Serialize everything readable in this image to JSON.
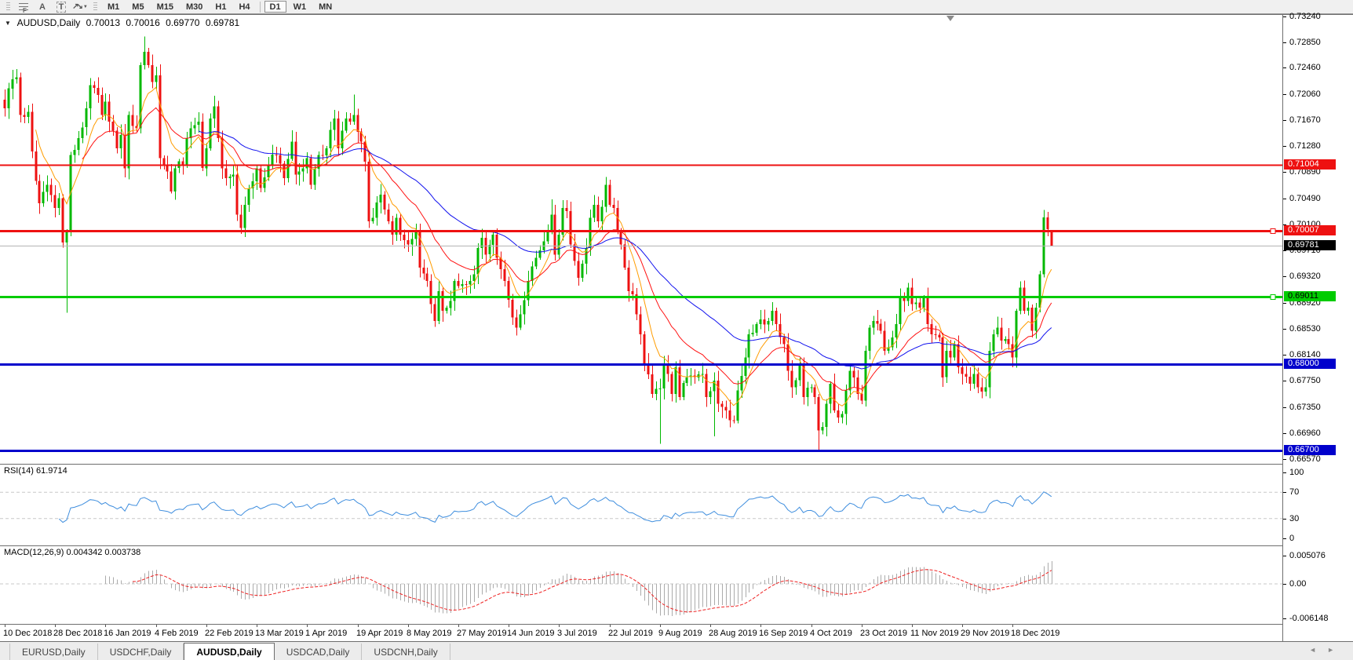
{
  "toolbar": {
    "fib_glyph": "F",
    "a_glyph": "A",
    "t_glyph": "T",
    "arrows_glyph": "↗↘",
    "caret_glyph": "▼",
    "timeframes": [
      "M1",
      "M5",
      "M15",
      "M30",
      "H1",
      "H4",
      "D1",
      "W1",
      "MN"
    ],
    "active_timeframe": "D1",
    "separator_before": "D1"
  },
  "chart_header": {
    "collapse_glyph": "▼",
    "symbol": "AUDUSD,Daily",
    "open": "0.70013",
    "high": "0.70016",
    "low": "0.69770",
    "close": "0.69781"
  },
  "rsi": {
    "label": "RSI(14) 61.9714",
    "period": 14,
    "value": 61.9714,
    "levels": [
      30,
      70
    ],
    "scale_ticks": [
      "100",
      "70",
      "30",
      "0"
    ],
    "line_color": "#3f8ede",
    "level_color": "#c9c9c9"
  },
  "macd": {
    "label": "MACD(12,26,9) 0.004342 0.003738",
    "params": [
      12,
      26,
      9
    ],
    "value": 0.004342,
    "signal_value": 0.003738,
    "scale_ticks": [
      "0.005076",
      "0.00",
      "-0.006148"
    ],
    "histogram_color": "#ababab",
    "signal_color": "#ee2222",
    "zero_line_color": "#c9c9c9"
  },
  "tabbar": {
    "tabs": [
      "EURUSD,Daily",
      "USDCHF,Daily",
      "AUDUSD,Daily",
      "USDCAD,Daily",
      "USDCNH,Daily"
    ],
    "active": "AUDUSD,Daily",
    "scroll_left_glyph": "◄",
    "scroll_right_glyph": "►"
  },
  "chart_data": {
    "type": "candlestick",
    "symbol": "AUDUSD",
    "timeframe": "Daily",
    "ylim": [
      0.66497,
      0.73246
    ],
    "price_axis_ticks": [
      "0.73240",
      "0.72850",
      "0.72460",
      "0.72060",
      "0.71670",
      "0.71280",
      "0.70890",
      "0.70490",
      "0.70100",
      "0.69710",
      "0.69320",
      "0.68920",
      "0.68530",
      "0.68140",
      "0.67750",
      "0.67350",
      "0.66960",
      "0.66570"
    ],
    "x_labels": [
      "10 Dec 2018",
      "28 Dec 2018",
      "16 Jan 2019",
      "4 Feb 2019",
      "22 Feb 2019",
      "13 Mar 2019",
      "1 Apr 2019",
      "19 Apr 2019",
      "8 May 2019",
      "27 May 2019",
      "14 Jun 2019",
      "3 Jul 2019",
      "22 Jul 2019",
      "9 Aug 2019",
      "28 Aug 2019",
      "16 Sep 2019",
      "4 Oct 2019",
      "23 Oct 2019",
      "11 Nov 2019",
      "29 Nov 2019",
      "18 Dec 2019"
    ],
    "bars_per_label": 13,
    "bar_count": 271,
    "first_open": 0.7198,
    "colors": {
      "up": "#00b800",
      "down": "#ee1111"
    },
    "close_path": [
      [
        0,
        0.7185
      ],
      [
        1,
        0.7215
      ],
      [
        3,
        0.7232
      ],
      [
        4,
        0.7175
      ],
      [
        6,
        0.718
      ],
      [
        7,
        0.712
      ],
      [
        9,
        0.7042
      ],
      [
        11,
        0.707
      ],
      [
        13,
        0.7035
      ],
      [
        14,
        0.705
      ],
      [
        15,
        0.6983
      ],
      [
        16,
        0.7
      ],
      [
        17,
        0.7115
      ],
      [
        19,
        0.714
      ],
      [
        21,
        0.7185
      ],
      [
        22,
        0.722
      ],
      [
        24,
        0.7205
      ],
      [
        25,
        0.7175
      ],
      [
        26,
        0.7195
      ],
      [
        27,
        0.7165
      ],
      [
        29,
        0.7125
      ],
      [
        30,
        0.7145
      ],
      [
        31,
        0.7095
      ],
      [
        32,
        0.7175
      ],
      [
        34,
        0.7155
      ],
      [
        35,
        0.725
      ],
      [
        36,
        0.727
      ],
      [
        37,
        0.725
      ],
      [
        38,
        0.7225
      ],
      [
        39,
        0.7235
      ],
      [
        40,
        0.711
      ],
      [
        42,
        0.709
      ],
      [
        43,
        0.706
      ],
      [
        44,
        0.7095
      ],
      [
        46,
        0.71
      ],
      [
        47,
        0.714
      ],
      [
        49,
        0.716
      ],
      [
        50,
        0.7165
      ],
      [
        51,
        0.7095
      ],
      [
        52,
        0.7125
      ],
      [
        53,
        0.717
      ],
      [
        54,
        0.7188
      ],
      [
        55,
        0.714
      ],
      [
        56,
        0.7095
      ],
      [
        57,
        0.708
      ],
      [
        59,
        0.7085
      ],
      [
        60,
        0.7025
      ],
      [
        61,
        0.7005
      ],
      [
        62,
        0.704
      ],
      [
        64,
        0.7075
      ],
      [
        65,
        0.7095
      ],
      [
        66,
        0.7065
      ],
      [
        68,
        0.71
      ],
      [
        70,
        0.7115
      ],
      [
        72,
        0.708
      ],
      [
        74,
        0.7135
      ],
      [
        75,
        0.7085
      ],
      [
        77,
        0.7095
      ],
      [
        78,
        0.711
      ],
      [
        79,
        0.707
      ],
      [
        81,
        0.7115
      ],
      [
        83,
        0.7125
      ],
      [
        85,
        0.717
      ],
      [
        86,
        0.7125
      ],
      [
        88,
        0.717
      ],
      [
        90,
        0.7175
      ],
      [
        91,
        0.715
      ],
      [
        93,
        0.7105
      ],
      [
        94,
        0.7015
      ],
      [
        95,
        0.702
      ],
      [
        97,
        0.7055
      ],
      [
        99,
        0.7015
      ],
      [
        100,
        0.6995
      ],
      [
        101,
        0.702
      ],
      [
        102,
        0.6995
      ],
      [
        104,
        0.698
      ],
      [
        106,
        0.7
      ],
      [
        107,
        0.6945
      ],
      [
        109,
        0.6925
      ],
      [
        110,
        0.689
      ],
      [
        111,
        0.6865
      ],
      [
        112,
        0.691
      ],
      [
        113,
        0.688
      ],
      [
        115,
        0.6895
      ],
      [
        116,
        0.6925
      ],
      [
        119,
        0.692
      ],
      [
        121,
        0.6935
      ],
      [
        122,
        0.6975
      ],
      [
        123,
        0.699
      ],
      [
        124,
        0.6965
      ],
      [
        126,
        0.6995
      ],
      [
        127,
        0.696
      ],
      [
        129,
        0.6925
      ],
      [
        131,
        0.687
      ],
      [
        132,
        0.6855
      ],
      [
        133,
        0.6875
      ],
      [
        135,
        0.6925
      ],
      [
        137,
        0.696
      ],
      [
        139,
        0.6985
      ],
      [
        140,
        0.7
      ],
      [
        141,
        0.7025
      ],
      [
        142,
        0.6965
      ],
      [
        143,
        0.6995
      ],
      [
        144,
        0.7035
      ],
      [
        145,
        0.703
      ],
      [
        146,
        0.698
      ],
      [
        148,
        0.693
      ],
      [
        150,
        0.6975
      ],
      [
        151,
        0.702
      ],
      [
        152,
        0.704
      ],
      [
        153,
        0.7015
      ],
      [
        155,
        0.707
      ],
      [
        156,
        0.704
      ],
      [
        157,
        0.7035
      ],
      [
        158,
        0.7
      ],
      [
        159,
        0.698
      ],
      [
        160,
        0.6945
      ],
      [
        161,
        0.691
      ],
      [
        162,
        0.6905
      ],
      [
        163,
        0.6875
      ],
      [
        164,
        0.6845
      ],
      [
        165,
        0.68
      ],
      [
        167,
        0.6755
      ],
      [
        169,
        0.6763
      ],
      [
        170,
        0.68
      ],
      [
        171,
        0.6785
      ],
      [
        172,
        0.6755
      ],
      [
        173,
        0.6795
      ],
      [
        174,
        0.675
      ],
      [
        176,
        0.678
      ],
      [
        178,
        0.678
      ],
      [
        180,
        0.6785
      ],
      [
        181,
        0.675
      ],
      [
        183,
        0.6775
      ],
      [
        184,
        0.674
      ],
      [
        186,
        0.673
      ],
      [
        188,
        0.6715
      ],
      [
        189,
        0.676
      ],
      [
        191,
        0.681
      ],
      [
        192,
        0.6845
      ],
      [
        194,
        0.686
      ],
      [
        197,
        0.6865
      ],
      [
        198,
        0.688
      ],
      [
        199,
        0.686
      ],
      [
        201,
        0.683
      ],
      [
        202,
        0.679
      ],
      [
        203,
        0.6765
      ],
      [
        205,
        0.68
      ],
      [
        206,
        0.675
      ],
      [
        208,
        0.6765
      ],
      [
        209,
        0.675
      ],
      [
        210,
        0.67
      ],
      [
        211,
        0.6705
      ],
      [
        212,
        0.674
      ],
      [
        213,
        0.677
      ],
      [
        214,
        0.673
      ],
      [
        216,
        0.6725
      ],
      [
        217,
        0.676
      ],
      [
        218,
        0.679
      ],
      [
        219,
        0.678
      ],
      [
        220,
        0.6755
      ],
      [
        221,
        0.6745
      ],
      [
        222,
        0.682
      ],
      [
        223,
        0.6855
      ],
      [
        224,
        0.6865
      ],
      [
        226,
        0.685
      ],
      [
        227,
        0.682
      ],
      [
        229,
        0.684
      ],
      [
        230,
        0.686
      ],
      [
        231,
        0.69
      ],
      [
        232,
        0.6895
      ],
      [
        233,
        0.6915
      ],
      [
        234,
        0.689
      ],
      [
        236,
        0.6885
      ],
      [
        237,
        0.69
      ],
      [
        238,
        0.686
      ],
      [
        239,
        0.6845
      ],
      [
        241,
        0.684
      ],
      [
        242,
        0.678
      ],
      [
        243,
        0.682
      ],
      [
        244,
        0.681
      ],
      [
        245,
        0.683
      ],
      [
        246,
        0.6795
      ],
      [
        247,
        0.6785
      ],
      [
        249,
        0.677
      ],
      [
        250,
        0.6785
      ],
      [
        251,
        0.6765
      ],
      [
        253,
        0.6765
      ],
      [
        254,
        0.682
      ],
      [
        255,
        0.6845
      ],
      [
        256,
        0.6855
      ],
      [
        257,
        0.6835
      ],
      [
        259,
        0.683
      ],
      [
        260,
        0.681
      ],
      [
        261,
        0.688
      ],
      [
        262,
        0.6915
      ],
      [
        263,
        0.688
      ],
      [
        264,
        0.6885
      ],
      [
        265,
        0.685
      ],
      [
        266,
        0.6885
      ],
      [
        267,
        0.6935
      ],
      [
        268,
        0.7021
      ],
      [
        269,
        0.7003
      ],
      [
        270,
        0.69781
      ]
    ],
    "special_bars": [
      {
        "i": 16,
        "l": 0.6877
      },
      {
        "i": 36,
        "h": 0.7293
      },
      {
        "i": 90,
        "h": 0.7206
      },
      {
        "i": 141,
        "h": 0.7048
      },
      {
        "i": 155,
        "h": 0.7082
      },
      {
        "i": 169,
        "l": 0.668
      },
      {
        "i": 183,
        "l": 0.6691
      },
      {
        "i": 210,
        "l": 0.6671
      },
      {
        "i": 268,
        "h": 0.7032
      },
      {
        "i": 269,
        "h": 0.7029
      },
      {
        "i": 270,
        "o": 0.70013,
        "h": 0.70016,
        "l": 0.6977,
        "c": 0.69781
      }
    ],
    "moving_averages": [
      {
        "period": 8,
        "color": "#ff9c00"
      },
      {
        "period": 20,
        "color": "#ff1111"
      },
      {
        "period": 50,
        "color": "#1111ee"
      }
    ],
    "horizontal_lines": [
      {
        "value": 0.71004,
        "label": "0.71004",
        "color": "#ee1111",
        "thickness": 2,
        "badge_bg": "#ee1111",
        "badge_fg": "#ffffff",
        "handle": false
      },
      {
        "value": 0.70007,
        "label": "0.70007",
        "color": "#ee1111",
        "thickness": 3,
        "badge_bg": "#ee1111",
        "badge_fg": "#ffffff",
        "handle": true
      },
      {
        "value": 0.69011,
        "label": "0.69011",
        "color": "#00cc00",
        "thickness": 3,
        "badge_bg": "#00cc00",
        "badge_fg": "#000000",
        "handle": true
      },
      {
        "value": 0.68,
        "label": "0.68000",
        "color": "#0000cc",
        "thickness": 3,
        "badge_bg": "#0000cc",
        "badge_fg": "#ffffff",
        "handle": false
      },
      {
        "value": 0.667,
        "label": "0.66700",
        "color": "#0000cc",
        "thickness": 3,
        "badge_bg": "#0000cc",
        "badge_fg": "#ffffff",
        "handle": false
      }
    ],
    "current_price": {
      "value": 0.69781,
      "label": "0.69781",
      "line_color": "#b4b4b4",
      "badge_bg": "#000000",
      "badge_fg": "#ffffff"
    }
  }
}
